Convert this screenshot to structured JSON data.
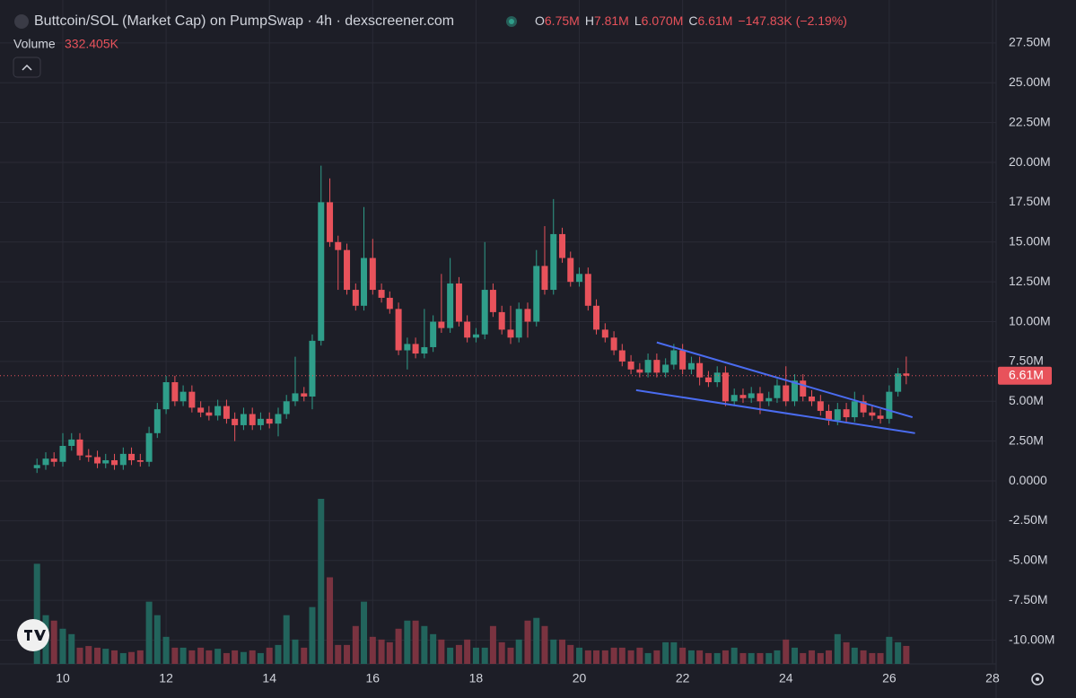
{
  "chart_data": {
    "type": "candlestick",
    "title": "Buttcoin/SOL (Market Cap) on PumpSwap · 4h · dexscreener.com",
    "ohlc": [
      {
        "key": "O",
        "value": 6.75,
        "label": "6.75M"
      },
      {
        "key": "H",
        "value": 7.81,
        "label": "7.81M"
      },
      {
        "key": "L",
        "value": 6.07,
        "label": "6.070M"
      },
      {
        "key": "C",
        "value": 6.61,
        "label": "6.61M"
      }
    ],
    "change": {
      "value": -147.83,
      "label": "−147.83K"
    },
    "change_pct": {
      "value": -2.19,
      "label": "(−2.19%)"
    },
    "volume_legend": {
      "name": "Volume",
      "value": 332.405,
      "label": "332.405K"
    },
    "price_label": {
      "value": 6.61,
      "label": "6.61M"
    },
    "up_color": "#2f9e8a",
    "down_color": "#e8525b",
    "up_volume_color": "#22645c",
    "down_volume_color": "#7a3340",
    "trendline_color": "#4a6cf0",
    "xlim": [
      8.784,
      28.07
    ],
    "xticks": [
      10,
      12,
      14,
      16,
      18,
      20,
      22,
      24,
      26,
      28
    ],
    "ylim": [
      -11.49,
      30.2
    ],
    "yticks": [
      {
        "value": 27.5,
        "label": "27.50M"
      },
      {
        "value": 25,
        "label": "25.00M"
      },
      {
        "value": 22.5,
        "label": "22.50M"
      },
      {
        "value": 20,
        "label": "20.00M"
      },
      {
        "value": 17.5,
        "label": "17.50M"
      },
      {
        "value": 15,
        "label": "15.00M"
      },
      {
        "value": 12.5,
        "label": "12.50M"
      },
      {
        "value": 10,
        "label": "10.00M"
      },
      {
        "value": 7.5,
        "label": "7.50M"
      },
      {
        "value": 5,
        "label": "5.00M"
      },
      {
        "value": 2.5,
        "label": "2.50M"
      },
      {
        "value": 0,
        "label": "0.0000"
      },
      {
        "value": -2.5,
        "label": "-2.50M"
      },
      {
        "value": -5,
        "label": "-5.00M"
      },
      {
        "value": -7.5,
        "label": "-7.50M"
      },
      {
        "value": -10,
        "label": "-10.00M"
      }
    ],
    "grid": true,
    "x": [
      9.5,
      9.67,
      9.83,
      10,
      10.17,
      10.33,
      10.5,
      10.67,
      10.83,
      11,
      11.17,
      11.33,
      11.5,
      11.67,
      11.83,
      12,
      12.17,
      12.33,
      12.5,
      12.67,
      12.83,
      13,
      13.17,
      13.33,
      13.5,
      13.67,
      13.83,
      14,
      14.17,
      14.33,
      14.5,
      14.67,
      14.83,
      15,
      15.17,
      15.33,
      15.5,
      15.67,
      15.83,
      16,
      16.17,
      16.33,
      16.5,
      16.67,
      16.83,
      17,
      17.17,
      17.33,
      17.5,
      17.67,
      17.83,
      18,
      18.17,
      18.33,
      18.5,
      18.67,
      18.83,
      19,
      19.17,
      19.33,
      19.5,
      19.67,
      19.83,
      20,
      20.17,
      20.33,
      20.5,
      20.67,
      20.83,
      21,
      21.17,
      21.33,
      21.5,
      21.67,
      21.83,
      22,
      22.17,
      22.33,
      22.5,
      22.67,
      22.83,
      23,
      23.17,
      23.33,
      23.5,
      23.67,
      23.83,
      24,
      24.17,
      24.33,
      24.5,
      24.67,
      24.83,
      25,
      25.17,
      25.33,
      25.5,
      25.67,
      25.83,
      26,
      26.17,
      26.33
    ],
    "open": [
      0.8,
      1.0,
      1.4,
      1.2,
      2.2,
      2.6,
      1.6,
      1.5,
      1.1,
      1.3,
      1.0,
      1.7,
      1.3,
      1.2,
      3.0,
      4.5,
      6.2,
      5.0,
      5.6,
      4.6,
      4.3,
      4.1,
      4.7,
      3.9,
      3.5,
      4.2,
      3.5,
      3.9,
      3.6,
      4.2,
      5.0,
      5.5,
      5.3,
      8.8,
      17.5,
      15.0,
      14.5,
      12.0,
      11.0,
      14.0,
      12.0,
      11.5,
      10.8,
      8.2,
      8.6,
      8.0,
      8.4,
      10.0,
      9.6,
      12.4,
      10.0,
      9.0,
      9.2,
      12.0,
      10.6,
      9.5,
      9.0,
      10.8,
      10.0,
      13.5,
      12.0,
      15.5,
      14.0,
      12.5,
      13.0,
      11.0,
      9.5,
      9.0,
      8.2,
      7.5,
      7.0,
      6.8,
      7.6,
      6.8,
      7.3,
      8.2,
      7.0,
      7.4,
      6.5,
      6.2,
      6.8,
      5.0,
      5.4,
      5.2,
      5.5,
      5.0,
      5.2,
      6.0,
      5.0,
      6.3,
      5.3,
      5.0,
      4.4,
      3.8,
      4.5,
      4.0,
      5.0,
      4.3,
      4.1,
      3.9,
      5.6,
      6.75
    ],
    "high": [
      1.4,
      1.8,
      1.8,
      3.0,
      3.0,
      3.0,
      2.0,
      1.9,
      1.7,
      1.7,
      2.1,
      2.1,
      1.7,
      3.4,
      4.9,
      6.6,
      6.6,
      6.0,
      6.0,
      5.0,
      4.7,
      5.1,
      5.1,
      4.3,
      4.6,
      4.6,
      4.3,
      4.3,
      4.6,
      5.4,
      7.8,
      5.9,
      9.2,
      19.8,
      19.0,
      15.4,
      14.9,
      12.4,
      17.2,
      15.2,
      12.4,
      11.9,
      11.2,
      9.0,
      9.0,
      10.8,
      10.4,
      13.0,
      14.0,
      12.8,
      10.4,
      9.6,
      15.0,
      12.4,
      11.0,
      11.0,
      11.2,
      11.2,
      14.5,
      16.0,
      17.7,
      15.9,
      14.4,
      13.4,
      13.4,
      11.4,
      9.9,
      9.4,
      8.6,
      7.9,
      7.4,
      8.0,
      8.0,
      7.7,
      8.6,
      8.6,
      7.8,
      7.8,
      6.9,
      7.2,
      7.2,
      5.8,
      5.8,
      5.9,
      5.9,
      5.6,
      6.4,
      7.2,
      6.7,
      6.7,
      5.7,
      5.4,
      4.8,
      4.9,
      4.9,
      5.6,
      5.4,
      4.7,
      4.5,
      6.0,
      7.1,
      7.81
    ],
    "low": [
      0.5,
      0.7,
      0.9,
      0.9,
      1.9,
      1.3,
      1.2,
      0.8,
      0.8,
      0.7,
      0.7,
      1.0,
      0.9,
      0.9,
      2.7,
      4.2,
      4.7,
      4.7,
      4.3,
      4.0,
      3.8,
      3.8,
      3.6,
      2.5,
      3.2,
      3.2,
      3.2,
      3.3,
      2.8,
      3.9,
      4.7,
      5.0,
      4.5,
      8.5,
      14.7,
      12.0,
      11.7,
      10.7,
      10.7,
      11.7,
      11.2,
      10.5,
      7.9,
      7.0,
      7.7,
      7.7,
      8.1,
      9.3,
      9.3,
      9.7,
      8.7,
      8.7,
      8.9,
      10.3,
      9.2,
      8.6,
      8.7,
      9.0,
      9.7,
      11.7,
      11.7,
      13.7,
      12.2,
      12.2,
      10.7,
      9.2,
      8.7,
      7.9,
      7.2,
      6.7,
      6.5,
      6.5,
      6.5,
      6.5,
      7.0,
      6.7,
      6.7,
      6.0,
      5.9,
      5.9,
      4.7,
      4.7,
      4.9,
      4.9,
      4.2,
      4.7,
      4.9,
      4.7,
      4.7,
      5.0,
      4.7,
      4.1,
      3.5,
      3.5,
      3.7,
      3.7,
      4.0,
      3.8,
      3.6,
      3.6,
      5.3,
      6.07
    ],
    "close": [
      1.0,
      1.4,
      1.2,
      2.2,
      2.6,
      1.6,
      1.5,
      1.1,
      1.3,
      1.0,
      1.7,
      1.3,
      1.2,
      3.0,
      4.5,
      6.2,
      5.0,
      5.6,
      4.6,
      4.3,
      4.1,
      4.7,
      3.9,
      3.5,
      4.2,
      3.5,
      3.9,
      3.6,
      4.2,
      5.0,
      5.5,
      5.3,
      8.8,
      17.5,
      15.0,
      14.5,
      12.0,
      11.0,
      14.0,
      12.0,
      11.5,
      10.8,
      8.2,
      8.6,
      8.0,
      8.4,
      10.0,
      9.6,
      12.4,
      10.0,
      9.0,
      9.2,
      12.0,
      10.6,
      9.5,
      9.0,
      10.8,
      10.0,
      13.5,
      12.0,
      15.5,
      14.0,
      12.5,
      13.0,
      11.0,
      9.5,
      9.0,
      8.2,
      7.5,
      7.0,
      6.8,
      7.6,
      6.8,
      7.3,
      8.2,
      7.0,
      7.4,
      6.5,
      6.2,
      6.8,
      5.0,
      5.4,
      5.2,
      5.5,
      5.0,
      5.2,
      6.0,
      5.0,
      6.3,
      5.3,
      5.0,
      4.4,
      3.8,
      4.5,
      4.0,
      5.0,
      4.3,
      4.1,
      3.9,
      5.6,
      6.75,
      6.61
    ],
    "volume": [
      1850,
      900,
      800,
      650,
      550,
      300,
      330,
      300,
      280,
      250,
      200,
      220,
      250,
      1150,
      900,
      500,
      300,
      300,
      250,
      300,
      250,
      280,
      200,
      250,
      220,
      250,
      200,
      300,
      350,
      900,
      450,
      300,
      1050,
      3050,
      1600,
      350,
      350,
      700,
      1150,
      500,
      450,
      400,
      650,
      800,
      800,
      700,
      550,
      450,
      300,
      350,
      450,
      300,
      300,
      700,
      400,
      300,
      450,
      800,
      850,
      700,
      450,
      450,
      350,
      300,
      250,
      250,
      250,
      300,
      300,
      250,
      300,
      200,
      250,
      400,
      400,
      300,
      250,
      250,
      200,
      200,
      250,
      300,
      200,
      200,
      200,
      200,
      250,
      450,
      300,
      200,
      250,
      200,
      250,
      550,
      400,
      300,
      250,
      200,
      200,
      500,
      400,
      332.405
    ],
    "trendlines": [
      {
        "x": [
          21.5,
          26.45
        ],
        "y": [
          8.7,
          4.0
        ]
      },
      {
        "x": [
          21.1,
          26.5
        ],
        "y": [
          5.7,
          3.0
        ]
      }
    ]
  }
}
